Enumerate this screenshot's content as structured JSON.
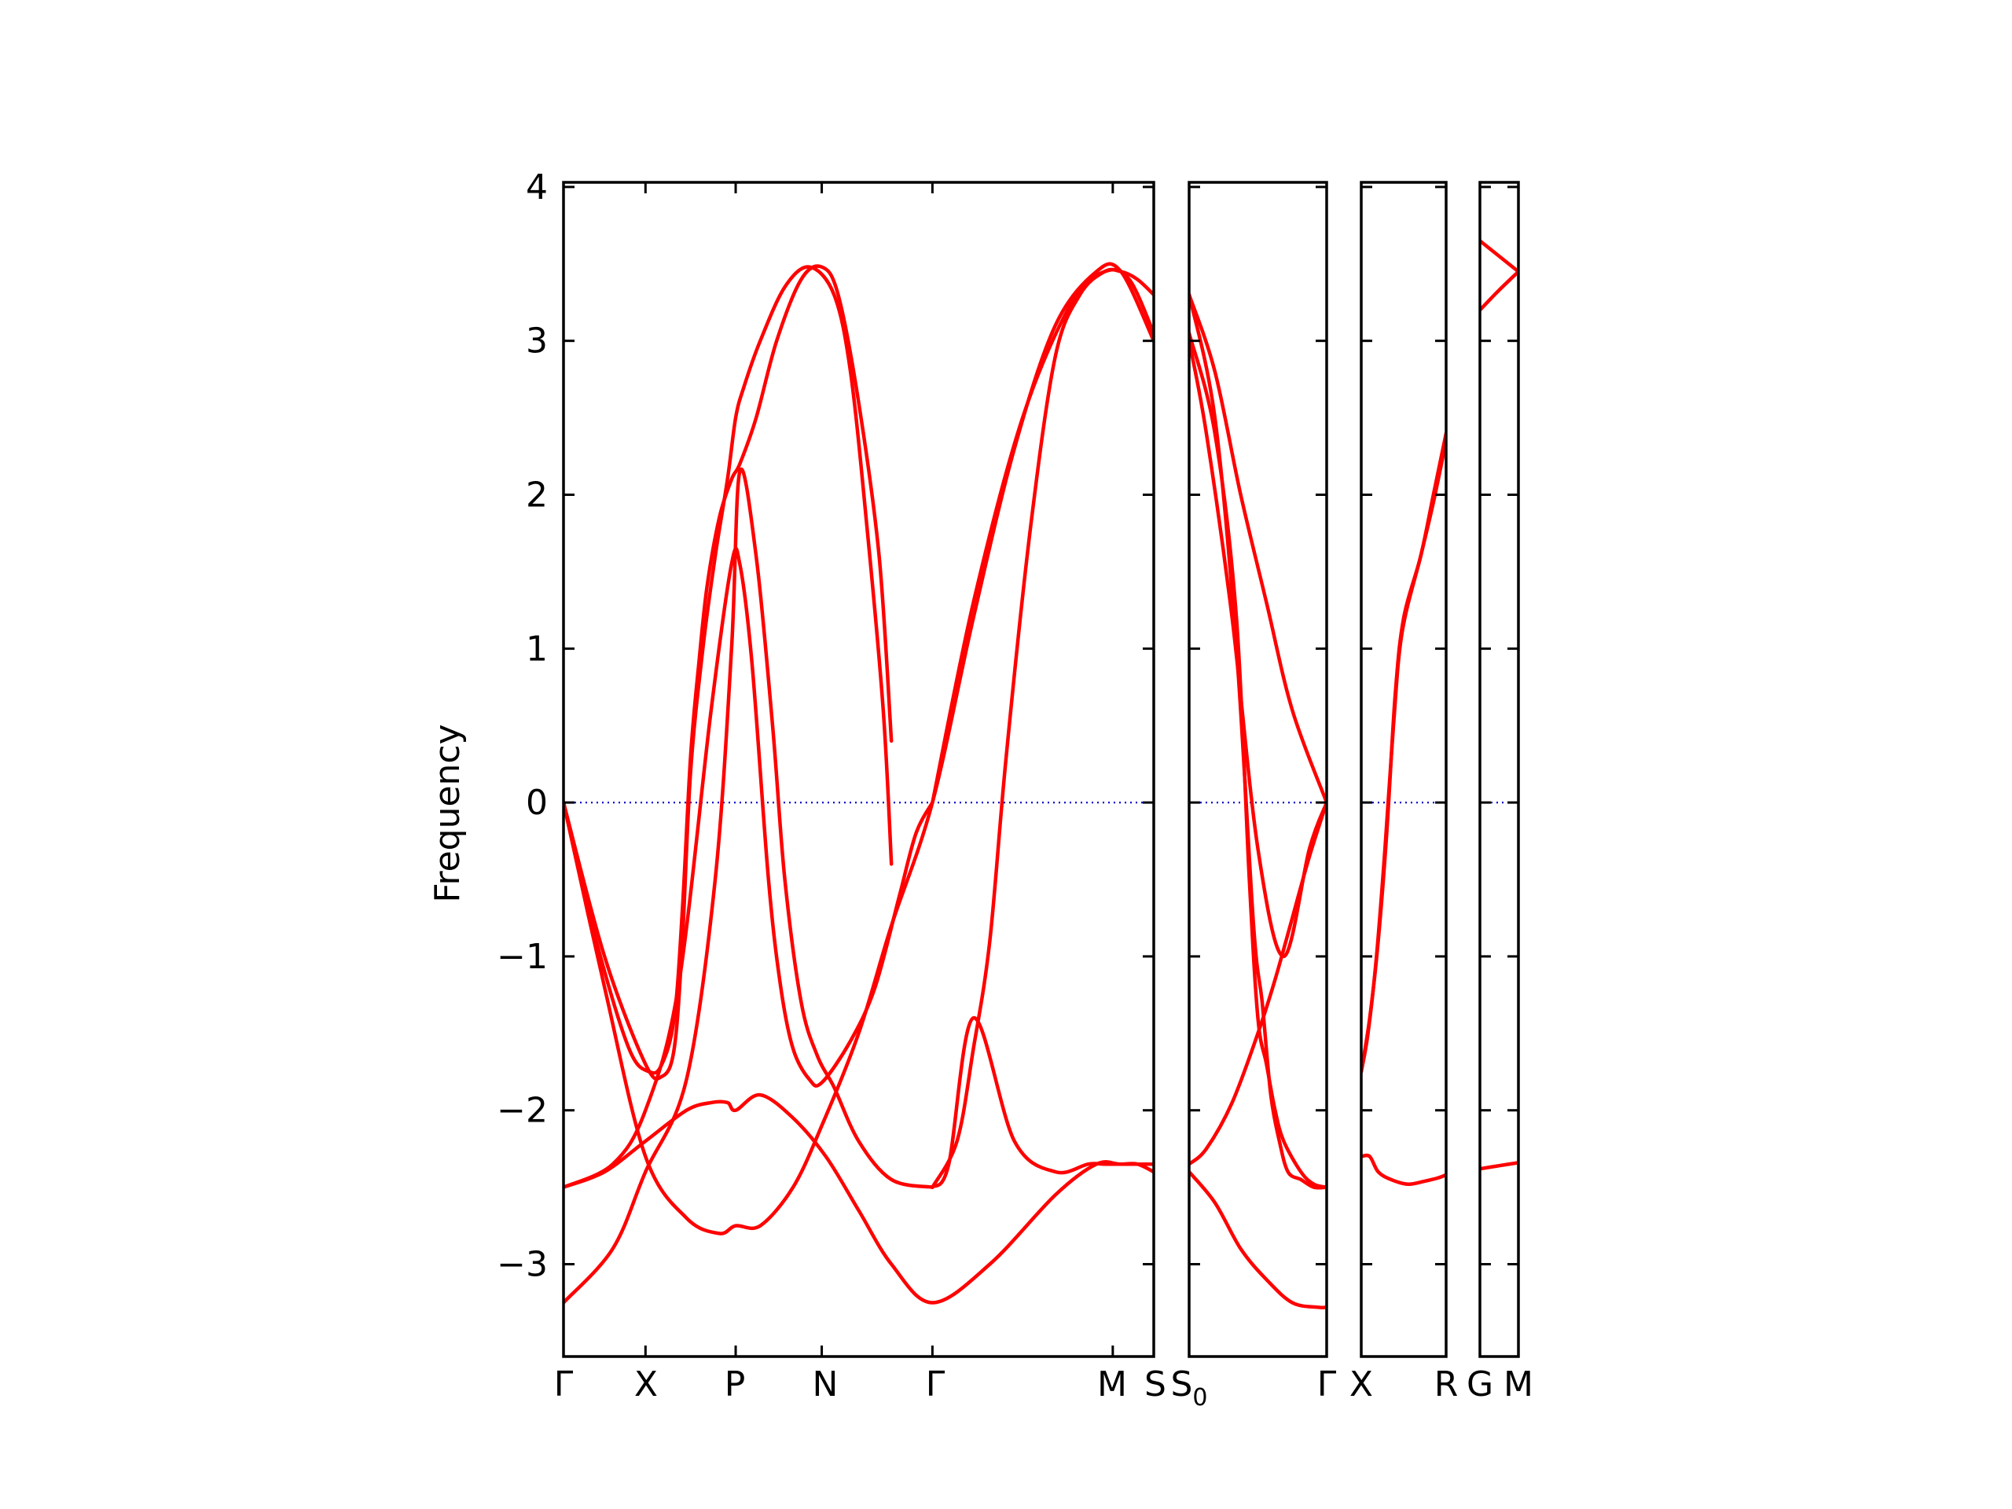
{
  "chart_data": {
    "type": "line",
    "title": "",
    "ylabel": "Frequency",
    "ylim": [
      -3.6,
      4.03
    ],
    "yticks": [
      -3,
      -2,
      -1,
      0,
      1,
      2,
      3,
      4
    ],
    "ytick_labels": [
      "−3",
      "−2",
      "−1",
      "0",
      "1",
      "2",
      "3",
      "4"
    ],
    "zero_line": {
      "value": 0,
      "color": "#0000cc",
      "style": "dotted"
    },
    "band_color": "#ff0000",
    "x_labels": [
      {
        "text": "Γ",
        "sub": ""
      },
      {
        "text": "X",
        "sub": ""
      },
      {
        "text": "P",
        "sub": ""
      },
      {
        "text": "N",
        "sub": ""
      },
      {
        "text": "Γ",
        "sub": ""
      },
      {
        "text": "M",
        "sub": ""
      },
      {
        "text": "S",
        "sub": ""
      },
      {
        "text": "S",
        "sub": "0"
      },
      {
        "text": "Γ",
        "sub": ""
      },
      {
        "text": "X",
        "sub": ""
      },
      {
        "text": "R",
        "sub": ""
      },
      {
        "text": "G",
        "sub": ""
      },
      {
        "text": "M",
        "sub": ""
      }
    ],
    "panels": [
      {
        "path": "Γ-X-P-N-Γ-M-S",
        "x_range": [
          0,
          7.2
        ],
        "ticks": [
          0,
          1,
          2.1,
          3.15,
          4.5,
          6.7,
          7.2
        ],
        "series": [
          {
            "x": [
              0,
              0.4,
              0.8,
              1.05,
              1.2,
              1.35,
              1.45,
              1.55,
              1.65,
              1.75,
              1.9,
              2.05,
              2.15,
              2.35,
              2.6,
              2.9,
              3.15,
              3.35,
              3.6,
              3.85,
              4.0
            ],
            "y": [
              0,
              -0.9,
              -1.6,
              -1.75,
              -1.7,
              -1.4,
              -0.7,
              0.3,
              0.9,
              1.4,
              1.85,
              2.1,
              2.2,
              2.5,
              3.0,
              3.4,
              3.48,
              3.3,
              2.6,
              1.6,
              0.4
            ]
          },
          {
            "x": [
              0,
              0.5,
              1.0,
              1.2,
              1.35,
              1.45,
              1.55,
              1.7,
              1.85,
              2.0,
              2.1,
              2.2,
              2.4,
              2.7,
              3.0,
              3.3,
              3.5,
              3.7,
              3.9,
              4.0
            ],
            "y": [
              0,
              -1.0,
              -1.7,
              -1.78,
              -1.6,
              -0.9,
              0.2,
              1.0,
              1.6,
              2.1,
              2.5,
              2.7,
              3.0,
              3.35,
              3.48,
              3.3,
              2.8,
              1.8,
              0.6,
              -0.4
            ]
          },
          {
            "x": [
              0,
              0.6,
              1.0,
              1.4,
              1.8,
              2.05,
              2.15,
              2.3,
              2.5,
              2.65,
              2.8,
              3.0,
              3.15,
              3.5,
              3.8,
              4.1,
              4.3,
              4.5
            ],
            "y": [
              -2.5,
              -2.35,
              -2.0,
              -1.2,
              0.6,
              1.55,
              1.55,
              0.9,
              -0.5,
              -1.2,
              -1.6,
              -1.8,
              -1.82,
              -1.55,
              -1.2,
              -0.6,
              -0.2,
              0.0
            ]
          },
          {
            "x": [
              0,
              0.6,
              1.0,
              1.5,
              1.85,
              2.05,
              2.15,
              2.35,
              2.55,
              2.7,
              2.9,
              3.1,
              3.3,
              3.6,
              4.0,
              4.5
            ],
            "y": [
              -3.25,
              -2.9,
              -2.4,
              -1.8,
              -0.5,
              1.0,
              2.15,
              1.6,
              0.5,
              -0.5,
              -1.3,
              -1.65,
              -1.85,
              -2.2,
              -2.45,
              -2.5
            ]
          },
          {
            "x": [
              0,
              0.5,
              1.0,
              1.5,
              1.8,
              2.0,
              2.1,
              2.4,
              2.8,
              3.2,
              3.6,
              4.0,
              4.5,
              5.2,
              6.0,
              6.5,
              6.8,
              7.2
            ],
            "y": [
              -2.5,
              -2.4,
              -2.2,
              -2.0,
              -1.95,
              -1.95,
              -2.0,
              -1.9,
              -2.05,
              -2.3,
              -2.65,
              -3.0,
              -3.25,
              -3.0,
              -2.55,
              -2.35,
              -2.35,
              -2.35
            ]
          },
          {
            "x": [
              0,
              0.5,
              1.0,
              1.5,
              1.9,
              2.1,
              2.4,
              2.8,
              3.15,
              3.6,
              4.0,
              4.5,
              5.0,
              5.5,
              6.0,
              6.5,
              6.8,
              7.2
            ],
            "y": [
              0,
              -1.2,
              -2.3,
              -2.7,
              -2.8,
              -2.75,
              -2.75,
              -2.5,
              -2.1,
              -1.5,
              -0.8,
              0.0,
              1.2,
              2.3,
              3.1,
              3.45,
              3.45,
              3.0
            ]
          },
          {
            "x": [
              4.5,
              4.8,
              5.0,
              5.2,
              5.4,
              5.7,
              6.0,
              6.3,
              6.6,
              6.8,
              7.0,
              7.2
            ],
            "y": [
              -2.5,
              -2.2,
              -1.6,
              -0.9,
              0.3,
              1.8,
              2.9,
              3.3,
              3.45,
              3.45,
              3.4,
              3.3
            ]
          },
          {
            "x": [
              4.5,
              4.7,
              5.0,
              5.5,
              6.0,
              6.4,
              6.6,
              6.8,
              7.0,
              7.2
            ],
            "y": [
              -2.5,
              -2.35,
              -1.4,
              -2.2,
              -2.4,
              -2.35,
              -2.35,
              -2.35,
              -2.35,
              -2.4
            ]
          },
          {
            "x": [
              4.5,
              5.0,
              5.6,
              6.2,
              6.6,
              6.9,
              7.2
            ],
            "y": [
              0,
              1.3,
              2.5,
              3.25,
              3.45,
              3.4,
              3.05
            ]
          }
        ]
      },
      {
        "path": "S₀-Γ",
        "x_range": [
          0,
          1.6
        ],
        "ticks": [
          0,
          1.6
        ],
        "series": [
          {
            "x": [
              0,
              0.3,
              0.55,
              0.75,
              0.85,
              0.95,
              1.05,
              1.15,
              1.3,
              1.45,
              1.6
            ],
            "y": [
              3.3,
              2.5,
              1.0,
              -0.8,
              -1.3,
              -1.9,
              -2.2,
              -2.4,
              -2.45,
              -2.5,
              -2.5
            ]
          },
          {
            "x": [
              0,
              0.3,
              0.55,
              0.7,
              0.8,
              0.9,
              1.0,
              1.1,
              1.3,
              1.45,
              1.6
            ],
            "y": [
              3.05,
              2.4,
              1.2,
              -0.5,
              -1.4,
              -1.7,
              -2.0,
              -2.2,
              -2.4,
              -2.48,
              -2.5
            ]
          },
          {
            "x": [
              0,
              0.2,
              0.5,
              0.8,
              1.1,
              1.4,
              1.6
            ],
            "y": [
              3.0,
              2.4,
              1.2,
              -0.3,
              -1.0,
              -0.3,
              0.0
            ]
          },
          {
            "x": [
              0,
              0.3,
              0.6,
              0.9,
              1.2,
              1.6
            ],
            "y": [
              3.3,
              2.8,
              2.0,
              1.3,
              0.6,
              0.0
            ]
          },
          {
            "x": [
              0,
              0.2,
              0.5,
              0.8,
              1.0,
              1.2,
              1.4,
              1.6
            ],
            "y": [
              -2.35,
              -2.25,
              -1.95,
              -1.5,
              -1.15,
              -0.75,
              -0.35,
              0.0
            ]
          },
          {
            "x": [
              0,
              0.3,
              0.6,
              0.9,
              1.2,
              1.5,
              1.6
            ],
            "y": [
              -2.4,
              -2.6,
              -2.9,
              -3.1,
              -3.25,
              -3.28,
              -3.28
            ]
          }
        ]
      },
      {
        "path": "X-R",
        "x_range": [
          0,
          1.0
        ],
        "ticks": [
          0,
          1.0
        ],
        "series": [
          {
            "x": [
              0,
              0.1,
              0.2,
              0.3,
              0.4,
              0.5,
              0.7,
              0.85,
              1.0
            ],
            "y": [
              -1.75,
              -1.4,
              -0.9,
              -0.2,
              0.7,
              1.2,
              1.6,
              2.0,
              2.4
            ]
          },
          {
            "x": [
              0,
              0.08,
              0.18,
              0.28,
              0.38,
              0.48,
              0.7,
              0.85,
              1.0
            ],
            "y": [
              -1.75,
              -1.5,
              -1.0,
              -0.3,
              0.5,
              1.1,
              1.6,
              1.95,
              2.35
            ]
          },
          {
            "x": [
              0,
              0.1,
              0.2,
              0.35,
              0.55,
              0.75,
              0.9,
              1.0
            ],
            "y": [
              -2.3,
              -2.3,
              -2.4,
              -2.45,
              -2.48,
              -2.46,
              -2.44,
              -2.42
            ]
          }
        ]
      },
      {
        "path": "G-M",
        "x_range": [
          0,
          1.0
        ],
        "ticks": [
          0,
          1.0
        ],
        "series": [
          {
            "x": [
              0,
              0.5,
              1.0
            ],
            "y": [
              3.65,
              3.55,
              3.45
            ]
          },
          {
            "x": [
              0,
              0.5,
              1.0
            ],
            "y": [
              3.2,
              3.33,
              3.45
            ]
          },
          {
            "x": [
              0,
              0.5,
              1.0
            ],
            "y": [
              -2.38,
              -2.36,
              -2.34
            ]
          }
        ]
      }
    ]
  }
}
